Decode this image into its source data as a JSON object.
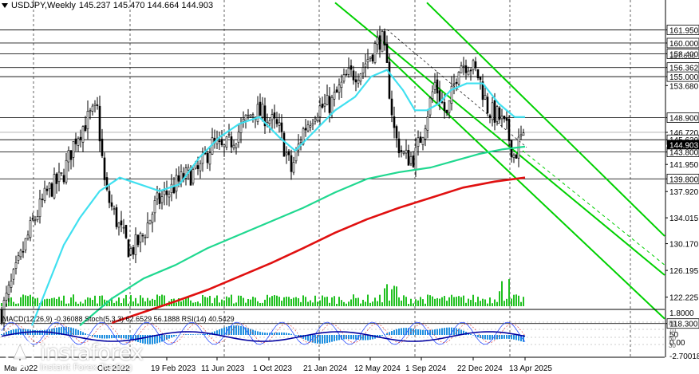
{
  "header": {
    "symbol": "USDJPY,Weekly",
    "ohlc": "145.237 145.470 144.664 144.903"
  },
  "watermark": {
    "brand": "instaforex",
    "tagline": "Instant Forex Trading"
  },
  "colors": {
    "ema_fast": "#40e0f0",
    "ema_mid": "#20d890",
    "ema_slow": "#e01010",
    "channel": "#00d000",
    "price_box_bg": "#ffffff",
    "current_price_box": "#000000"
  },
  "chart_data": {
    "type": "candlestick",
    "price_axis_labels": [
      "161.950",
      "160.000",
      "158.400",
      "156.362",
      "155.000",
      "153.680",
      "148.900",
      "146.720",
      "145.620",
      "143.800",
      "141.950",
      "139.800",
      "137.920",
      "134.015",
      "130.170",
      "126.195",
      "122.225",
      "118.300"
    ],
    "boxed_levels": [
      "161.950",
      "160.000",
      "158.400",
      "156.362",
      "155.000",
      "148.900",
      "145.620",
      "143.800",
      "139.800",
      "118.300"
    ],
    "dimmed_levels": [
      "146.720"
    ],
    "stacked_levels": [
      "157.600"
    ],
    "x_tick_labels": [
      "Mar 2022",
      "Oct 2022",
      "19 Feb 2023",
      "11 Jun 2023",
      "1 Oct 2023",
      "21 Jan 2024",
      "12 May 2024",
      "1 Sep 2024",
      "22 Dec 2024",
      "13 Apr 2025"
    ],
    "indicator": {
      "label": "MACD(12,26,9) -0.36088 Stoch(5,3,3) 62.6529 56.1888 RSI(14) 40.5429",
      "axis_labels": [
        "1.8000",
        "50",
        "0.00",
        "-2.70018"
      ],
      "levels": [
        "80",
        "70",
        "50",
        "30"
      ]
    }
  }
}
